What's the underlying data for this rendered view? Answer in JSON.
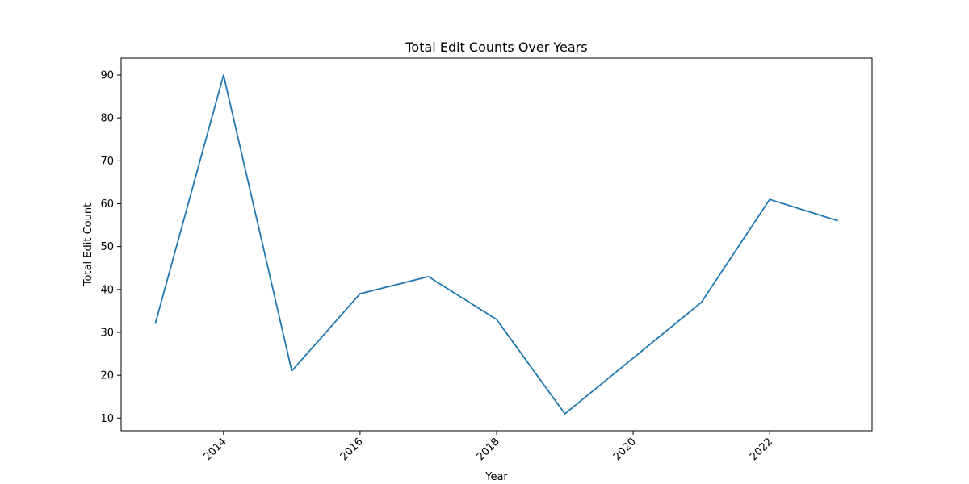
{
  "chart_data": {
    "type": "line",
    "title": "Total Edit Counts Over Years",
    "xlabel": "Year",
    "ylabel": "Total Edit Count",
    "x": [
      2013,
      2014,
      2015,
      2016,
      2017,
      2018,
      2019,
      2020,
      2021,
      2022,
      2023
    ],
    "series": [
      {
        "values": [
          32,
          90,
          21,
          39,
          43,
          33,
          11,
          24,
          37,
          61,
          56
        ],
        "color": "#1f77b4"
      }
    ],
    "xlim": [
      2012.5,
      2023.5
    ],
    "ylim": [
      7.05,
      93.95
    ],
    "xticks": [
      2014,
      2016,
      2018,
      2020,
      2022
    ],
    "yticks": [
      10,
      20,
      30,
      40,
      50,
      60,
      70,
      80,
      90
    ],
    "grid": false,
    "legend": false
  }
}
